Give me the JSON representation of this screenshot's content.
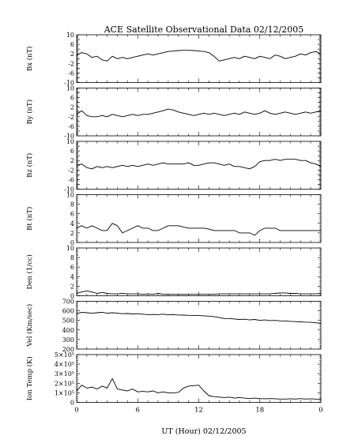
{
  "title": "ACE Satellite Observational Data   02/12/2005",
  "xlabel": "UT (Hour)   02/12/2005",
  "chart_data": {
    "type": "line",
    "title": "ACE Satellite Observational Data   02/12/2005",
    "x_ticks": [
      "0",
      "6",
      "12",
      "18",
      "0"
    ],
    "x_tick_values": [
      0,
      6,
      12,
      18,
      24
    ],
    "xlim": [
      0,
      24
    ],
    "xlabel": "UT (Hour)   02/12/2005",
    "panels": [
      {
        "name": "Bx",
        "ylabel": "Bx (nT)",
        "ylim": [
          -10,
          10
        ],
        "yticks": [
          -10,
          -8,
          -6,
          -4,
          -2,
          0,
          2,
          4,
          6,
          8,
          10
        ],
        "ytick_labels": [
          "-10",
          "",
          "-6",
          "",
          "-2",
          "",
          "2",
          "",
          "6",
          "",
          "10"
        ],
        "series": [
          {
            "x": [
              0,
              0.5,
              1,
              1.5,
              2,
              2.5,
              3,
              3.5,
              4,
              4.5,
              5,
              5.5,
              6,
              6.5,
              7,
              7.5,
              8,
              8.5,
              9,
              9.5,
              10,
              10.5,
              11,
              11.5,
              12,
              12.5,
              13,
              13.5,
              14,
              14.5,
              15,
              15.5,
              16,
              16.5,
              17,
              17.5,
              18,
              18.5,
              19,
              19.5,
              20,
              20.5,
              21,
              21.5,
              22,
              22.5,
              23,
              23.5,
              24
            ],
            "values": [
              1.5,
              2.5,
              2,
              0.5,
              1,
              -0.5,
              -1,
              1,
              0,
              0.5,
              0,
              0.5,
              1,
              1.5,
              2,
              1.5,
              2,
              2.5,
              3,
              3.2,
              3.4,
              3.5,
              3.5,
              3.4,
              3.2,
              3,
              2.5,
              1,
              -1,
              -0.5,
              0,
              0.5,
              0,
              1,
              0.5,
              0,
              1,
              0.5,
              0,
              1.5,
              1,
              0,
              0.5,
              1,
              2,
              1.5,
              2.5,
              3,
              2
            ]
          }
        ]
      },
      {
        "name": "By",
        "ylabel": "By (nT)",
        "ylim": [
          -10,
          10
        ],
        "yticks": [
          -10,
          -8,
          -6,
          -4,
          -2,
          0,
          2,
          4,
          6,
          8,
          10
        ],
        "ytick_labels": [
          "-10",
          "",
          "-6",
          "",
          "-2",
          "",
          "2",
          "",
          "6",
          "",
          "10"
        ],
        "series": [
          {
            "x": [
              0,
              0.5,
              1,
              1.5,
              2,
              2.5,
              3,
              3.5,
              4,
              4.5,
              5,
              5.5,
              6,
              6.5,
              7,
              7.5,
              8,
              8.5,
              9,
              9.5,
              10,
              10.5,
              11,
              11.5,
              12,
              12.5,
              13,
              13.5,
              14,
              14.5,
              15,
              15.5,
              16,
              16.5,
              17,
              17.5,
              18,
              18.5,
              19,
              19.5,
              20,
              20.5,
              21,
              21.5,
              22,
              22.5,
              23,
              23.5,
              24
            ],
            "values": [
              -1,
              0.5,
              -1.5,
              -2,
              -2,
              -1.5,
              -2,
              -1,
              -1.5,
              -2,
              -1.5,
              -1,
              -1.5,
              -1,
              -1,
              -0.5,
              0,
              0.5,
              1.2,
              0.8,
              0,
              -0.5,
              -1,
              -1.5,
              -1,
              -0.5,
              -1,
              -0.5,
              -1,
              -1.5,
              -1,
              -0.5,
              -1,
              0,
              -0.5,
              -1,
              -0.5,
              0.5,
              -0.5,
              -1,
              -0.5,
              0,
              -0.5,
              -1,
              -0.5,
              0,
              -0.5,
              0,
              0.5
            ]
          }
        ]
      },
      {
        "name": "Bz",
        "ylabel": "Bz (nT)",
        "ylim": [
          -10,
          10
        ],
        "yticks": [
          -10,
          -8,
          -6,
          -4,
          -2,
          0,
          2,
          4,
          6,
          8,
          10
        ],
        "ytick_labels": [
          "-10",
          "",
          "-6",
          "",
          "-2",
          "",
          "2",
          "",
          "6",
          "",
          "10"
        ],
        "series": [
          {
            "x": [
              0,
              0.5,
              1,
              1.5,
              2,
              2.5,
              3,
              3.5,
              4,
              4.5,
              5,
              5.5,
              6,
              6.5,
              7,
              7.5,
              8,
              8.5,
              9,
              9.5,
              10,
              10.5,
              11,
              11.5,
              12,
              12.5,
              13,
              13.5,
              14,
              14.5,
              15,
              15.5,
              16,
              16.5,
              17,
              17.5,
              18,
              18.5,
              19,
              19.5,
              20,
              20.5,
              21,
              21.5,
              22,
              22.5,
              23,
              23.5,
              24
            ],
            "values": [
              0,
              0.5,
              -1,
              -1.5,
              -0.5,
              -1,
              -0.5,
              -1,
              -0.5,
              0,
              -0.5,
              0,
              -0.5,
              0,
              0.5,
              0,
              0.5,
              1,
              0.5,
              0.5,
              0.5,
              0.5,
              1,
              0,
              0,
              0.5,
              1,
              1,
              0.5,
              0,
              0.5,
              -0.5,
              -0.5,
              -1,
              -1.5,
              -0.5,
              1.5,
              2,
              2,
              2.5,
              2,
              2.5,
              2.5,
              2.5,
              2,
              2,
              1,
              0.5,
              -0.5
            ]
          }
        ]
      },
      {
        "name": "Bt",
        "ylabel": "Bt (nT)",
        "ylim": [
          0,
          10
        ],
        "yticks": [
          0,
          2,
          4,
          6,
          8,
          10
        ],
        "ytick_labels": [
          "0",
          "2",
          "4",
          "6",
          "8",
          "10"
        ],
        "series": [
          {
            "x": [
              0,
              0.5,
              1,
              1.5,
              2,
              2.5,
              3,
              3.5,
              4,
              4.5,
              5,
              5.5,
              6,
              6.5,
              7,
              7.5,
              8,
              8.5,
              9,
              9.5,
              10,
              10.5,
              11,
              11.5,
              12,
              12.5,
              13,
              13.5,
              14,
              14.5,
              15,
              15.5,
              16,
              16.5,
              17,
              17.5,
              18,
              18.5,
              19,
              19.5,
              20,
              20.5,
              21,
              21.5,
              22,
              22.5,
              23,
              23.5,
              24
            ],
            "values": [
              3,
              3.5,
              3,
              3.5,
              3,
              2.5,
              2.5,
              4,
              3.5,
              2,
              2.5,
              3,
              3.5,
              3,
              3,
              2.5,
              2.5,
              3,
              3.5,
              3.5,
              3.5,
              3.2,
              3,
              3,
              3,
              3,
              2.8,
              2.5,
              2.5,
              2.5,
              2.5,
              2.5,
              2,
              2,
              2,
              1.5,
              2.5,
              3,
              3,
              3,
              2.5,
              2.5,
              2.5,
              2.5,
              2.5,
              2.5,
              2.5,
              2.5,
              2.5
            ]
          }
        ]
      },
      {
        "name": "Den",
        "ylabel": "Den (1/cc)",
        "ylim": [
          0,
          10
        ],
        "yticks": [
          0,
          2,
          4,
          6,
          8,
          10
        ],
        "ytick_labels": [
          "0",
          "2",
          "4",
          "6",
          "8",
          "10"
        ],
        "series": [
          {
            "x": [
              0,
              0.5,
              1,
              1.5,
              2,
              2.5,
              3,
              3.5,
              4,
              4.5,
              5,
              5.5,
              6,
              6.5,
              7,
              7.5,
              8,
              8.5,
              9,
              9.5,
              10,
              10.5,
              11,
              11.5,
              12,
              12.5,
              13,
              13.5,
              14,
              14.5,
              15,
              15.5,
              16,
              16.5,
              17,
              17.5,
              18,
              18.5,
              19,
              19.5,
              20,
              20.5,
              21,
              21.5,
              22,
              22.5,
              23,
              23.5,
              24
            ],
            "values": [
              0.5,
              0.8,
              1,
              0.8,
              0.5,
              0.7,
              0.5,
              0.4,
              0.4,
              0.5,
              0.4,
              0.4,
              0.4,
              0.3,
              0.4,
              0.3,
              0.5,
              0.3,
              0.3,
              0.3,
              0.3,
              0.3,
              0.3,
              0.3,
              0.3,
              0.3,
              0.3,
              0.3,
              0.4,
              0.4,
              0.4,
              0.4,
              0.4,
              0.4,
              0.4,
              0.4,
              0.4,
              0.4,
              0.4,
              0.5,
              0.6,
              0.6,
              0.5,
              0.5,
              0.4,
              0.4,
              0.4,
              0.4,
              0.5
            ]
          }
        ]
      },
      {
        "name": "Vel",
        "ylabel": "Vel (Km/sec)",
        "ylim": [
          200,
          700
        ],
        "yticks": [
          200,
          300,
          400,
          500,
          600,
          700
        ],
        "ytick_labels": [
          "200",
          "300",
          "400",
          "500",
          "600",
          "700"
        ],
        "series": [
          {
            "x": [
              0,
              0.5,
              1,
              1.5,
              2,
              2.5,
              3,
              3.5,
              4,
              4.5,
              5,
              5.5,
              6,
              6.5,
              7,
              7.5,
              8,
              8.5,
              9,
              9.5,
              10,
              10.5,
              11,
              11.5,
              12,
              12.5,
              13,
              13.5,
              14,
              14.5,
              15,
              15.5,
              16,
              16.5,
              17,
              17.5,
              18,
              18.5,
              19,
              19.5,
              20,
              20.5,
              21,
              21.5,
              22,
              22.5,
              23,
              23.5,
              24
            ],
            "values": [
              570,
              585,
              580,
              575,
              580,
              585,
              575,
              580,
              575,
              570,
              572,
              568,
              570,
              565,
              560,
              562,
              560,
              565,
              558,
              560,
              556,
              555,
              553,
              552,
              550,
              548,
              545,
              540,
              530,
              520,
              520,
              515,
              510,
              512,
              505,
              510,
              500,
              505,
              498,
              500,
              495,
              494,
              490,
              488,
              485,
              482,
              480,
              475,
              470
            ]
          }
        ]
      },
      {
        "name": "Ion Temp",
        "ylabel": "Ion Temp (K)",
        "ylim": [
          0,
          500000
        ],
        "yticks": [
          0,
          100000,
          200000,
          300000,
          400000,
          500000
        ],
        "ytick_labels": [
          "0",
          "1×10⁵",
          "2×10⁵",
          "3×10⁵",
          "4×10⁵",
          "5×10⁵"
        ],
        "series": [
          {
            "x": [
              0,
              0.5,
              1,
              1.5,
              2,
              2.5,
              3,
              3.5,
              4,
              4.5,
              5,
              5.5,
              6,
              6.5,
              7,
              7.5,
              8,
              8.5,
              9,
              9.5,
              10,
              10.5,
              11,
              11.5,
              12,
              12.5,
              13,
              13.5,
              14,
              14.5,
              15,
              15.5,
              16,
              16.5,
              17,
              17.5,
              18,
              18.5,
              19,
              19.5,
              20,
              20.5,
              21,
              21.5,
              22,
              22.5,
              23,
              23.5,
              24
            ],
            "values": [
              120000,
              180000,
              150000,
              160000,
              140000,
              170000,
              150000,
              250000,
              140000,
              130000,
              120000,
              140000,
              110000,
              115000,
              110000,
              120000,
              100000,
              110000,
              100000,
              100000,
              105000,
              150000,
              170000,
              175000,
              180000,
              120000,
              70000,
              60000,
              55000,
              50000,
              55000,
              45000,
              50000,
              45000,
              40000,
              45000,
              40000,
              38000,
              40000,
              38000,
              35000,
              35000,
              38000,
              35000,
              40000,
              35000,
              38000,
              35000,
              30000
            ]
          }
        ]
      }
    ]
  }
}
